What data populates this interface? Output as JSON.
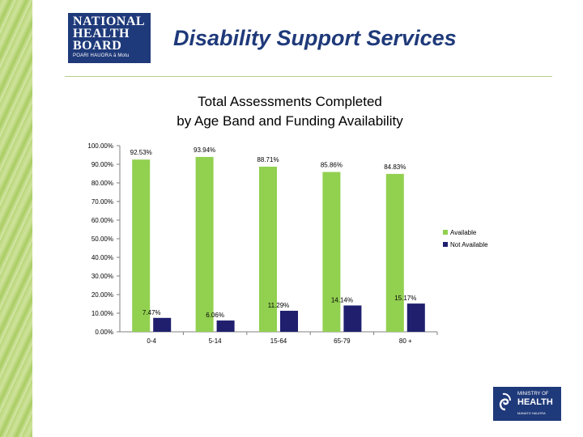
{
  "header": {
    "title": "Disability Support Services",
    "logo_left": {
      "line1": "NATIONAL",
      "line2": "HEALTH",
      "line3": "BOARD",
      "tagline": "POARI HAUORA ā Motu"
    },
    "logo_right": {
      "line1": "MINISTRY OF",
      "line2": "HEALTH",
      "line3": "MANATŪ HAUORA"
    }
  },
  "colors": {
    "available": "#92d050",
    "not_available": "#1f1f6e",
    "heading": "#1f3a7a",
    "rule": "#b6cf88"
  },
  "chart_data": {
    "type": "bar",
    "title_line1": "Total Assessments Completed",
    "title_line2": "by Age Band and Funding Availability",
    "categories": [
      "0-4",
      "5-14",
      "15-64",
      "65-79",
      "80 +"
    ],
    "series": [
      {
        "name": "Available",
        "values": [
          92.53,
          93.94,
          88.71,
          85.86,
          84.83
        ],
        "labels": [
          "92.53%",
          "93.94%",
          "88.71%",
          "85.86%",
          "84.83%"
        ]
      },
      {
        "name": "Not Available",
        "values": [
          7.47,
          6.06,
          11.29,
          14.14,
          15.17
        ],
        "labels": [
          "7.47%",
          "6.06%",
          "11.29%",
          "14.14%",
          "15.17%"
        ]
      }
    ],
    "ylim": [
      0,
      100
    ],
    "y_ticks": [
      "0.00%",
      "10.00%",
      "20.00%",
      "30.00%",
      "40.00%",
      "50.00%",
      "60.00%",
      "70.00%",
      "80.00%",
      "90.00%",
      "100.00%"
    ],
    "legend_position": "right",
    "grid": false,
    "xlabel": "",
    "ylabel": ""
  }
}
